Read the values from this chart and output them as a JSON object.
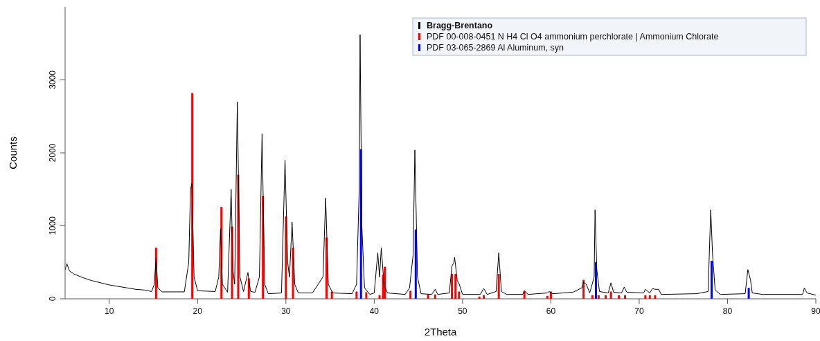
{
  "chart_data": {
    "type": "line",
    "xlabel": "2Theta",
    "ylabel": "Counts",
    "xlim": [
      5,
      90
    ],
    "ylim": [
      0,
      4000
    ],
    "xticks": [
      10,
      20,
      30,
      40,
      50,
      60,
      70,
      80,
      90
    ],
    "yticks": [
      0,
      1000,
      2000,
      3000
    ],
    "legend": "top right",
    "grid": false,
    "series": [
      {
        "name": "Bragg-Brentano",
        "color": "#000000",
        "x": [
          5,
          5.2,
          5.5,
          6,
          7,
          8,
          9,
          10,
          11,
          12,
          13,
          14,
          14.8,
          15.1,
          15.3,
          15.5,
          16,
          17,
          18.5,
          19.0,
          19.2,
          19.35,
          19.6,
          20,
          22,
          22.4,
          22.6,
          22.8,
          23.4,
          23.8,
          24.0,
          24.2,
          24.5,
          24.8,
          25.2,
          25.7,
          26.0,
          26.5,
          27.0,
          27.3,
          27.6,
          28.0,
          29.5,
          29.9,
          30.2,
          30.4,
          30.7,
          31.0,
          31.4,
          33,
          34.2,
          34.5,
          34.8,
          35.3,
          37.5,
          38.0,
          38.3,
          38.4,
          38.6,
          38.9,
          39.5,
          40.0,
          40.4,
          40.6,
          40.8,
          41.1,
          41.5,
          43.5,
          44.0,
          44.4,
          44.6,
          44.9,
          45.3,
          46.5,
          46.9,
          47.2,
          48.5,
          48.8,
          49.0,
          49.1,
          49.4,
          49.6,
          50.0,
          52.0,
          52.4,
          52.8,
          53.8,
          54.1,
          54.4,
          55,
          56.8,
          57.0,
          57.4,
          59.6,
          59.8,
          60.2,
          62.5,
          63.5,
          63.7,
          64.0,
          64.4,
          64.9,
          65.0,
          65.2,
          65.5,
          66.5,
          66.8,
          67.1,
          68.0,
          68.3,
          68.6,
          70.5,
          70.7,
          71.2,
          71.5,
          71.8,
          72.2,
          72.5,
          76.5,
          77.8,
          78.1,
          78.3,
          78.6,
          79.2,
          82.0,
          82.3,
          82.6,
          82.8,
          84,
          88.5,
          88.7,
          89,
          90
        ],
        "values": [
          400,
          480,
          380,
          340,
          290,
          250,
          220,
          190,
          170,
          150,
          130,
          120,
          100,
          200,
          560,
          150,
          95,
          95,
          95,
          500,
          1500,
          1580,
          300,
          110,
          100,
          300,
          960,
          200,
          90,
          1500,
          400,
          200,
          2700,
          300,
          100,
          360,
          100,
          90,
          300,
          2260,
          200,
          70,
          80,
          1900,
          500,
          300,
          1050,
          200,
          80,
          80,
          300,
          1380,
          200,
          80,
          70,
          200,
          1500,
          3620,
          1000,
          150,
          60,
          80,
          630,
          300,
          700,
          200,
          80,
          60,
          150,
          600,
          2040,
          300,
          70,
          60,
          130,
          60,
          80,
          450,
          490,
          570,
          250,
          210,
          60,
          60,
          140,
          60,
          100,
          630,
          100,
          60,
          60,
          110,
          60,
          80,
          100,
          70,
          90,
          150,
          230,
          200,
          80,
          300,
          1220,
          400,
          100,
          80,
          220,
          90,
          80,
          160,
          90,
          80,
          130,
          80,
          140,
          130,
          130,
          60,
          70,
          100,
          1220,
          620,
          120,
          60,
          70,
          400,
          260,
          80,
          60,
          60,
          150,
          80,
          50
        ]
      },
      {
        "name": "PDF 00-008-0451 N H4 Cl O4 ammonium perchlorate | Ammonium Chlorate",
        "type": "bar",
        "color": "#ff0000",
        "x": [
          15.3,
          19.4,
          22.7,
          23.9,
          24.6,
          25.8,
          27.4,
          30.0,
          30.8,
          34.6,
          35.2,
          38.0,
          39.1,
          40.6,
          41.0,
          41.2,
          44.1,
          46.1,
          46.9,
          48.8,
          49.2,
          49.6,
          51.9,
          52.4,
          54.1,
          57.0,
          59.6,
          60.0,
          63.7,
          64.7,
          65.4,
          66.2,
          66.8,
          67.7,
          68.4,
          70.7,
          71.2,
          71.8
        ],
        "values": [
          700,
          2820,
          1260,
          990,
          1700,
          280,
          1410,
          1130,
          700,
          840,
          100,
          100,
          90,
          50,
          330,
          440,
          110,
          60,
          60,
          340,
          340,
          100,
          30,
          50,
          340,
          110,
          40,
          100,
          260,
          50,
          50,
          50,
          100,
          50,
          50,
          50,
          50,
          50
        ]
      },
      {
        "name": "PDF 03-065-2869 Al Aluminum, syn",
        "type": "bar",
        "color": "#0000ff",
        "x": [
          38.5,
          44.7,
          65.1,
          78.2,
          82.4
        ],
        "values": [
          2050,
          950,
          500,
          520,
          150
        ]
      }
    ]
  }
}
